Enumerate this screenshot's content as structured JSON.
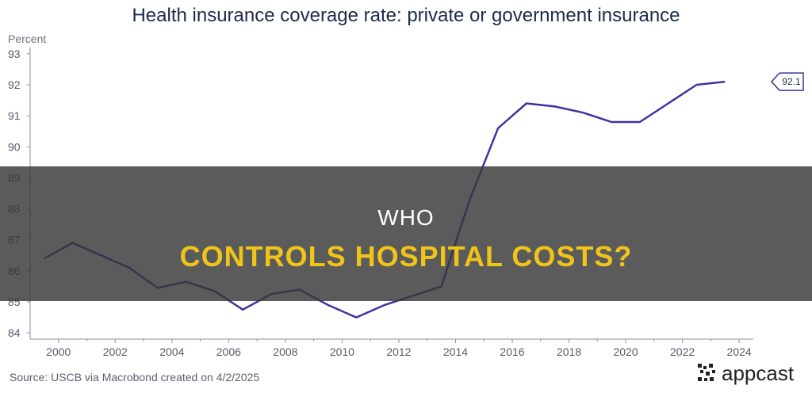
{
  "title": "Health insurance coverage rate: private or government insurance",
  "y_axis_unit": "Percent",
  "source": "Source: USCB via Macrobond created on 4/2/2025",
  "banner": {
    "line1": "WHO",
    "line2": "CONTROLS HOSPITAL COSTS?"
  },
  "logo": {
    "text": "appcast"
  },
  "colors": {
    "line": "#3b35a0",
    "axis": "#8a8ea0",
    "banner_accent": "#f0c419"
  },
  "chart_data": {
    "type": "line",
    "title": "Health insurance coverage rate: private or government insurance",
    "ylabel": "Percent",
    "xlabel": "",
    "x": [
      1999.5,
      2000.5,
      2001.5,
      2002.5,
      2003.5,
      2004.5,
      2005.5,
      2006.5,
      2007.5,
      2008.5,
      2009.5,
      2010.5,
      2011.5,
      2012.5,
      2013.5,
      2014.5,
      2015.5,
      2016.5,
      2017.5,
      2018.5,
      2019.5,
      2020.5,
      2021.5,
      2022.5,
      2023.5
    ],
    "series": [
      {
        "values": [
          86.4,
          86.9,
          86.5,
          86.1,
          85.45,
          85.65,
          85.35,
          84.75,
          85.25,
          85.4,
          84.9,
          84.5,
          84.9,
          85.2,
          85.5,
          88.3,
          90.6,
          91.4,
          91.3,
          91.1,
          90.8,
          90.8,
          91.4,
          92.0,
          92.1
        ]
      }
    ],
    "xticks": [
      "2000",
      "2002",
      "2004",
      "2006",
      "2008",
      "2010",
      "2012",
      "2014",
      "2016",
      "2018",
      "2020",
      "2022",
      "2024"
    ],
    "xtick_values": [
      2000,
      2002,
      2004,
      2006,
      2008,
      2010,
      2012,
      2014,
      2016,
      2018,
      2020,
      2022,
      2024
    ],
    "yticks": [
      84,
      85,
      86,
      87,
      88,
      89,
      90,
      91,
      92,
      93
    ],
    "xlim": [
      1999,
      2024.5
    ],
    "ylim": [
      83.8,
      93.2
    ],
    "grid": false,
    "annotations": [
      {
        "text": "92.1",
        "y": 92.1
      }
    ]
  }
}
